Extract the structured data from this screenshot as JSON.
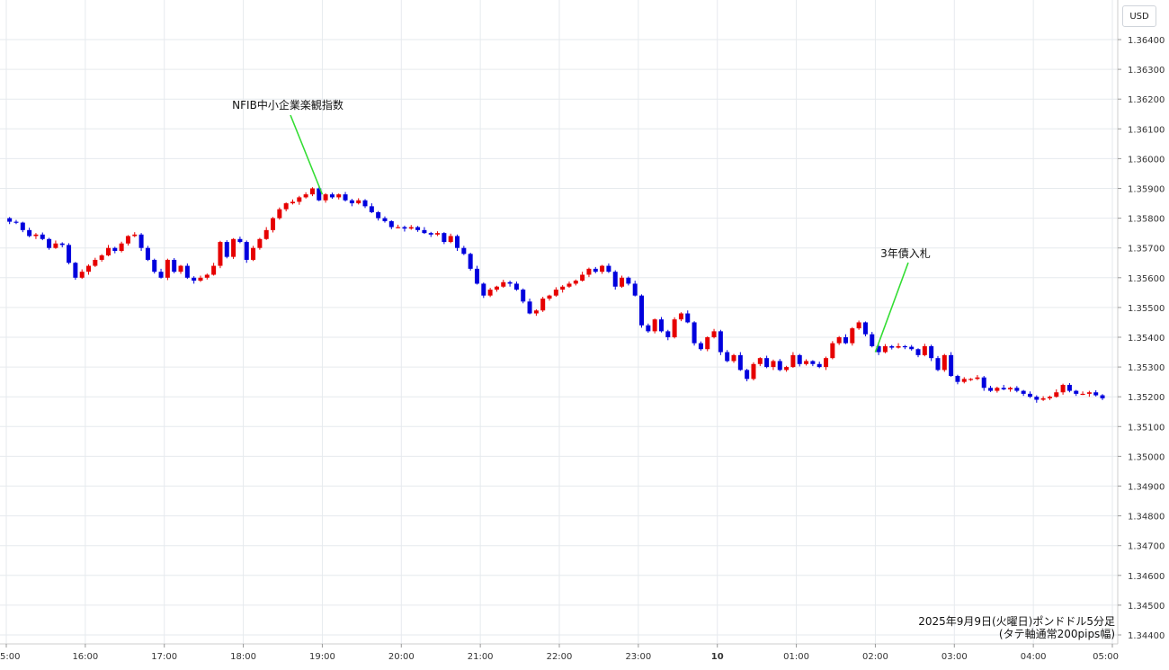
{
  "currency": "USD",
  "chart_data": {
    "type": "candlestick",
    "y_axis": {
      "ticks": [
        "1.36400",
        "1.36300",
        "1.36200",
        "1.36100",
        "1.36000",
        "1.35900",
        "1.35800",
        "1.35700",
        "1.35600",
        "1.35500",
        "1.35400",
        "1.35300",
        "1.35200",
        "1.35100",
        "1.35000",
        "1.34900",
        "1.34800",
        "1.34700",
        "1.34600",
        "1.34500",
        "1.34400"
      ],
      "ylim": [
        1.344,
        1.364
      ]
    },
    "x_axis": {
      "ticks": [
        {
          "label": "5:00",
          "hour": 15
        },
        {
          "label": "16:00",
          "hour": 16
        },
        {
          "label": "17:00",
          "hour": 17
        },
        {
          "label": "18:00",
          "hour": 18
        },
        {
          "label": "19:00",
          "hour": 19
        },
        {
          "label": "20:00",
          "hour": 20
        },
        {
          "label": "21:00",
          "hour": 21
        },
        {
          "label": "22:00",
          "hour": 22
        },
        {
          "label": "23:00",
          "hour": 23
        },
        {
          "label": "10",
          "hour": 24,
          "bold": true
        },
        {
          "label": "01:00",
          "hour": 25
        },
        {
          "label": "02:00",
          "hour": 26
        },
        {
          "label": "03:00",
          "hour": 27
        },
        {
          "label": "04:00",
          "hour": 28
        },
        {
          "label": "05:00",
          "hour": 29
        }
      ],
      "xlim": [
        15.0,
        29.1
      ]
    },
    "grid": true,
    "annotations": [
      {
        "text": "NFIB中小企業楽観指数",
        "hour": 19.0,
        "price": 1.3588
      },
      {
        "text": "3年債入札",
        "hour": 26.0,
        "price": 1.3535
      }
    ],
    "caption": [
      "2025年9月9日(火曜日)ポンドドル5分足",
      "(タテ軸通常200pips幅)"
    ],
    "colors": {
      "up": "#e60000",
      "down": "#0000dd",
      "grid": "#e6eaee",
      "annotation_line": "#33dd33"
    },
    "bar_interval_minutes": 5,
    "start_hour": 15.0,
    "closes": [
      1.35788,
      1.35785,
      1.3576,
      1.3574,
      1.35745,
      1.3573,
      1.357,
      1.35715,
      1.3571,
      1.3565,
      1.356,
      1.3562,
      1.3564,
      1.3566,
      1.35675,
      1.357,
      1.3569,
      1.35715,
      1.3574,
      1.35745,
      1.357,
      1.3566,
      1.3562,
      1.356,
      1.3566,
      1.3562,
      1.3564,
      1.356,
      1.3559,
      1.356,
      1.3561,
      1.3564,
      1.3572,
      1.3567,
      1.3573,
      1.3572,
      1.3566,
      1.357,
      1.3573,
      1.3576,
      1.358,
      1.3583,
      1.3585,
      1.35855,
      1.3587,
      1.3588,
      1.359,
      1.3586,
      1.3588,
      1.3587,
      1.3588,
      1.3586,
      1.3585,
      1.3586,
      1.3584,
      1.3582,
      1.358,
      1.3579,
      1.3577,
      1.3577,
      1.35765,
      1.3577,
      1.3576,
      1.3575,
      1.35745,
      1.3575,
      1.3572,
      1.3574,
      1.357,
      1.3568,
      1.3563,
      1.3558,
      1.3554,
      1.3556,
      1.3557,
      1.35585,
      1.3558,
      1.3556,
      1.3552,
      1.3548,
      1.3549,
      1.3553,
      1.3554,
      1.3556,
      1.3557,
      1.3558,
      1.3559,
      1.3561,
      1.3563,
      1.3562,
      1.3564,
      1.3562,
      1.3557,
      1.356,
      1.3558,
      1.3554,
      1.3544,
      1.3542,
      1.3546,
      1.3542,
      1.354,
      1.3546,
      1.3548,
      1.3545,
      1.3538,
      1.3536,
      1.354,
      1.3542,
      1.3535,
      1.3532,
      1.3534,
      1.3529,
      1.3526,
      1.3531,
      1.3533,
      1.353,
      1.3532,
      1.3529,
      1.353,
      1.3534,
      1.3531,
      1.3532,
      1.3531,
      1.353,
      1.3533,
      1.3538,
      1.354,
      1.3538,
      1.3543,
      1.3545,
      1.3541,
      1.3537,
      1.3535,
      1.3537,
      1.35365,
      1.3537,
      1.35368,
      1.3536,
      1.3534,
      1.3537,
      1.3533,
      1.3529,
      1.3534,
      1.3527,
      1.3525,
      1.3526,
      1.3526,
      1.35265,
      1.3523,
      1.3522,
      1.3523,
      1.35225,
      1.3523,
      1.3522,
      1.3521,
      1.352,
      1.3519,
      1.35195,
      1.352,
      1.35215,
      1.3524,
      1.3522,
      1.3521,
      1.3521,
      1.35215,
      1.35205,
      1.35195
    ]
  }
}
